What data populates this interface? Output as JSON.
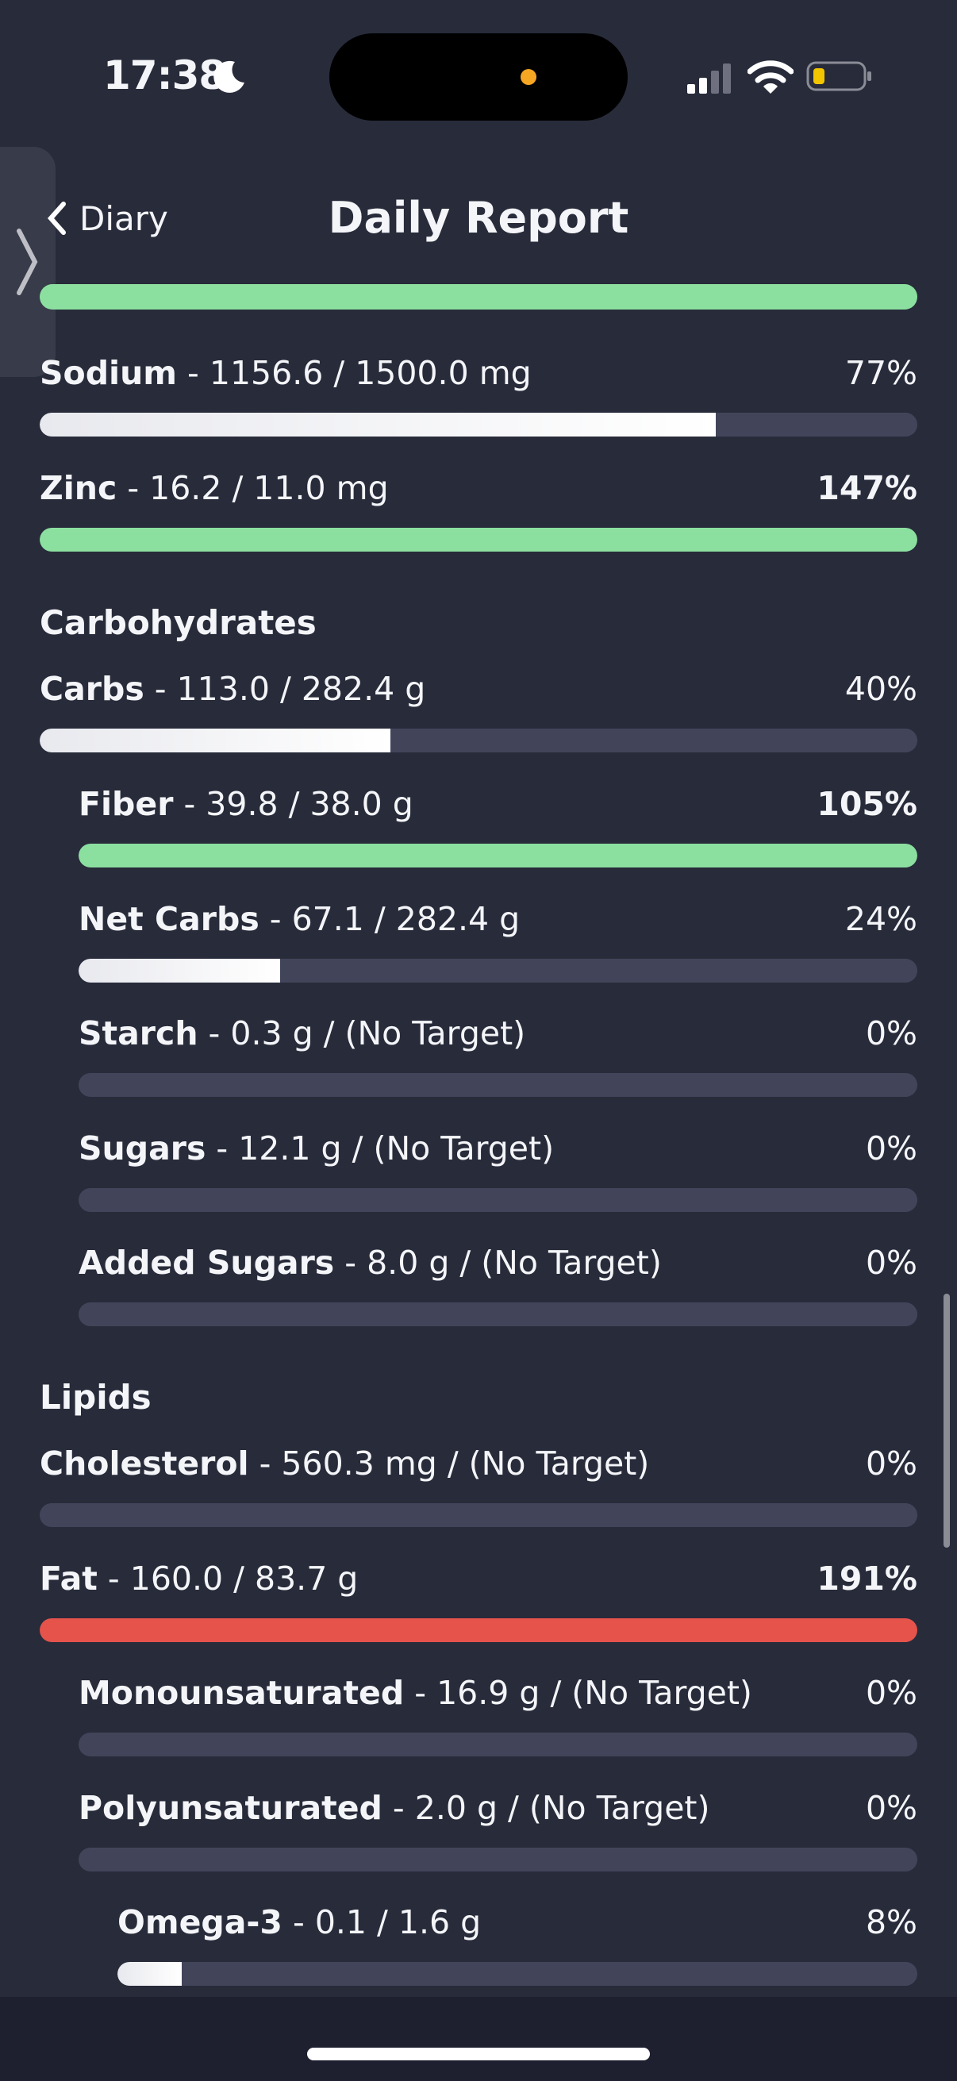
{
  "status_bar": {
    "time": "17:38"
  },
  "header": {
    "back_label": "Diary",
    "title": "Daily Report"
  },
  "rows": [
    {
      "name": "Sodium",
      "detail": " - 1156.6 / 1500.0 mg",
      "percent": "77%",
      "fraction": 0.77,
      "style": "white",
      "indent": 0
    },
    {
      "name": "Zinc",
      "detail": " - 16.2 / 11.0 mg",
      "percent": "147%",
      "fraction": 1.0,
      "style": "green",
      "indent": 0
    },
    {
      "name": "Carbs",
      "detail": " - 113.0 / 282.4 g",
      "percent": "40%",
      "fraction": 0.4,
      "style": "white",
      "indent": 0
    },
    {
      "name": "Fiber",
      "detail": " - 39.8 / 38.0 g",
      "percent": "105%",
      "fraction": 1.0,
      "style": "green",
      "indent": 1
    },
    {
      "name": "Net Carbs",
      "detail": " - 67.1 / 282.4 g",
      "percent": "24%",
      "fraction": 0.24,
      "style": "white",
      "indent": 1
    },
    {
      "name": "Starch",
      "detail": " - 0.3 g / (No Target)",
      "percent": "0%",
      "fraction": 0,
      "style": "white",
      "indent": 1
    },
    {
      "name": "Sugars",
      "detail": " - 12.1 g / (No Target)",
      "percent": "0%",
      "fraction": 0,
      "style": "white",
      "indent": 1
    },
    {
      "name": "Added Sugars",
      "detail": " - 8.0 g / (No Target)",
      "percent": "0%",
      "fraction": 0,
      "style": "white",
      "indent": 1
    },
    {
      "name": "Cholesterol",
      "detail": " - 560.3 mg / (No Target)",
      "percent": "0%",
      "fraction": 0,
      "style": "white",
      "indent": 0
    },
    {
      "name": "Fat",
      "detail": " - 160.0 / 83.7 g",
      "percent": "191%",
      "fraction": 1.0,
      "style": "red",
      "indent": 0
    },
    {
      "name": "Monounsaturated",
      "detail": " - 16.9 g / (No Target)",
      "percent": "0%",
      "fraction": 0,
      "style": "white",
      "indent": 1
    },
    {
      "name": "Polyunsaturated",
      "detail": " - 2.0 g / (No Target)",
      "percent": "0%",
      "fraction": 0,
      "style": "white",
      "indent": 1
    },
    {
      "name": "Omega-3",
      "detail": " - 0.1 / 1.6 g",
      "percent": "8%",
      "fraction": 0.08,
      "style": "white",
      "indent": 2
    }
  ],
  "sections": {
    "carbohydrates": "Carbohydrates",
    "lipids": "Lipids"
  },
  "colors": {
    "background": "#282b3a",
    "track": "#42455a",
    "over_target_green": "#8be0a0",
    "over_target_red": "#e5534b",
    "accent_dot": "#f5a623"
  },
  "icons": {
    "back": "chevron-left-icon",
    "moon": "moon-icon",
    "signal": "cellular-signal-icon",
    "wifi": "wifi-icon",
    "battery": "battery-low-icon",
    "drawer": "chevron-right-icon"
  }
}
